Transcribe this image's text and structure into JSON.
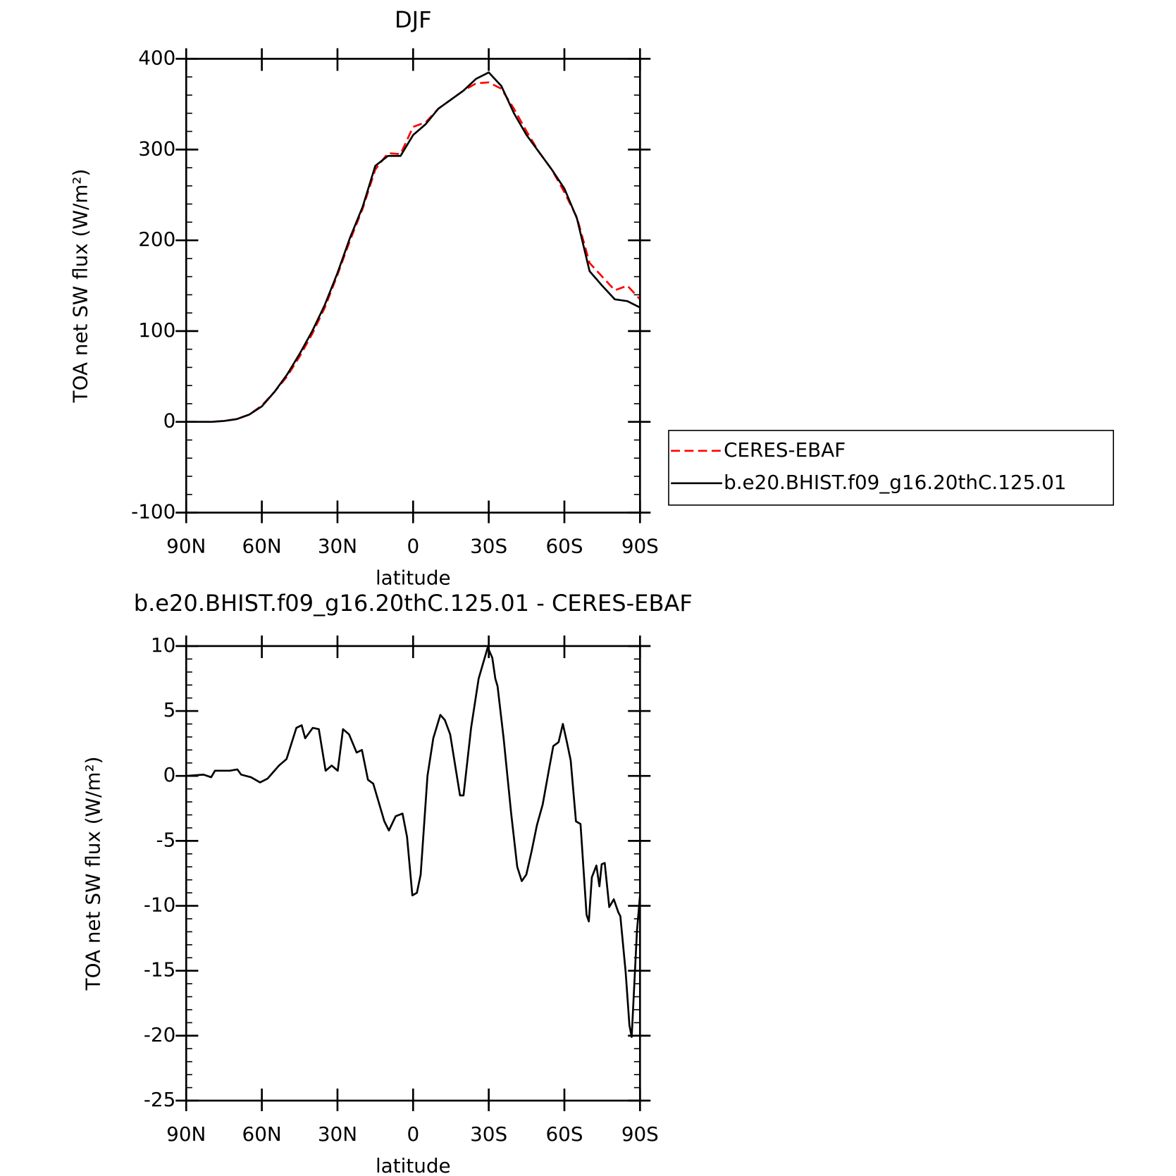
{
  "chart_data": [
    {
      "type": "line",
      "title": "DJF",
      "xlabel": "latitude",
      "ylabel": "TOA net SW flux (W/m²)",
      "x": [
        90,
        85,
        80,
        75,
        70,
        65,
        60,
        55,
        50,
        45,
        40,
        35,
        30,
        25,
        20,
        15,
        10,
        5,
        0,
        -5,
        -10,
        -15,
        -20,
        -25,
        -30,
        -35,
        -40,
        -45,
        -50,
        -55,
        -60,
        -65,
        -70,
        -75,
        -80,
        -85,
        -90
      ],
      "series": [
        {
          "name": "CERES-EBAF",
          "color": "#ff0000",
          "style": "dashed",
          "values": [
            0,
            0,
            0,
            1,
            3,
            8,
            18,
            33,
            50,
            72,
            97,
            126,
            162,
            200,
            235,
            278,
            296,
            295,
            325,
            330,
            345,
            355,
            365,
            373,
            374,
            367,
            345,
            320,
            297,
            278,
            253,
            225,
            175,
            160,
            145,
            150,
            135
          ]
        },
        {
          "name": "b.e20.BHIST.f09_g16.20thC.125.01",
          "color": "#000000",
          "style": "solid",
          "values": [
            0,
            0,
            0,
            1,
            3,
            8,
            17,
            33,
            52,
            75,
            100,
            129,
            164,
            203,
            237,
            282,
            293,
            293,
            316,
            328,
            345,
            355,
            365,
            378,
            385,
            370,
            340,
            316,
            297,
            278,
            257,
            224,
            166,
            150,
            135,
            133,
            126
          ]
        }
      ],
      "xlim": [
        90,
        -90
      ],
      "ylim": [
        -100,
        400
      ],
      "xticks": [
        {
          "value": 90,
          "label": "90N"
        },
        {
          "value": 60,
          "label": "60N"
        },
        {
          "value": 30,
          "label": "30N"
        },
        0,
        {
          "value": -30,
          "label": "30S"
        },
        {
          "value": -60,
          "label": "60S"
        },
        {
          "value": -90,
          "label": "90S"
        }
      ],
      "yticks": [
        -100,
        0,
        100,
        200,
        300,
        400
      ],
      "legend": "outside-right"
    },
    {
      "type": "line",
      "title": "b.e20.BHIST.f09_g16.20thC.125.01 - CERES-EBAF",
      "xlabel": "latitude",
      "ylabel": "TOA net SW flux (W/m²)",
      "x": [
        90,
        83.1,
        80.1,
        78.6,
        72.7,
        69.7,
        68.2,
        64.3,
        60.7,
        57.7,
        53.2,
        50.2,
        46.3,
        44.2,
        42.8,
        39.8,
        37.4,
        34.7,
        32.3,
        29.9,
        27.8,
        25.4,
        22.4,
        20.3,
        17.9,
        15.8,
        11.4,
        9.6,
        6.9,
        4.2,
        2.4,
        0.3,
        -1.5,
        -3,
        -5.7,
        -8,
        -10.8,
        -12.6,
        -14.7,
        -18.6,
        -20,
        -23,
        -26,
        -29.6,
        -31.4,
        -32.6,
        -33.5,
        -35.9,
        -38.9,
        -41.3,
        -43.1,
        -44.9,
        -47,
        -49.1,
        -51.4,
        -53.8,
        -55.6,
        -57.7,
        -59.4,
        -61,
        -62.5,
        -64.6,
        -66.4,
        -68.8,
        -69.7,
        -70.9,
        -72.7,
        -73.9,
        -74.8,
        -76,
        -77.8,
        -79.6,
        -81.4,
        -82.2,
        -84.3,
        -85.8,
        -86.7,
        -88.8,
        -90
      ],
      "values": [
        0,
        0.1,
        -0.1,
        0.4,
        0.4,
        0.5,
        0.1,
        -0.1,
        -0.5,
        -0.2,
        0.8,
        1.3,
        3.7,
        3.9,
        2.9,
        3.7,
        3.6,
        0.4,
        0.8,
        0.4,
        3.6,
        3.2,
        1.8,
        2,
        -0.3,
        -0.6,
        -3.5,
        -4.2,
        -3.1,
        -2.9,
        -4.7,
        -9.2,
        -9,
        -7.6,
        0,
        2.9,
        4.7,
        4.3,
        3.2,
        -1.5,
        -1.5,
        3.7,
        7.5,
        9.9,
        9.1,
        7.5,
        6.9,
        2.9,
        -2.9,
        -7,
        -8.1,
        -7.6,
        -5.8,
        -3.8,
        -2.2,
        0.4,
        2.3,
        2.6,
        4,
        2.6,
        1.2,
        -3.5,
        -3.7,
        -10.7,
        -11.2,
        -7.8,
        -6.9,
        -8.5,
        -6.8,
        -6.7,
        -10.1,
        -9.5,
        -10.5,
        -10.8,
        -15.1,
        -19.2,
        -20.1,
        -11.9,
        -9.2
      ],
      "color": "#000000",
      "xlim": [
        90,
        -90
      ],
      "ylim": [
        -25,
        10
      ],
      "xticks": [
        {
          "value": 90,
          "label": "90N"
        },
        {
          "value": 60,
          "label": "60N"
        },
        {
          "value": 30,
          "label": "30N"
        },
        0,
        {
          "value": -30,
          "label": "30S"
        },
        {
          "value": -60,
          "label": "60S"
        },
        {
          "value": -90,
          "label": "90S"
        }
      ],
      "yticks": [
        -25,
        -20,
        -15,
        -10,
        -5,
        0,
        5,
        10
      ]
    }
  ]
}
